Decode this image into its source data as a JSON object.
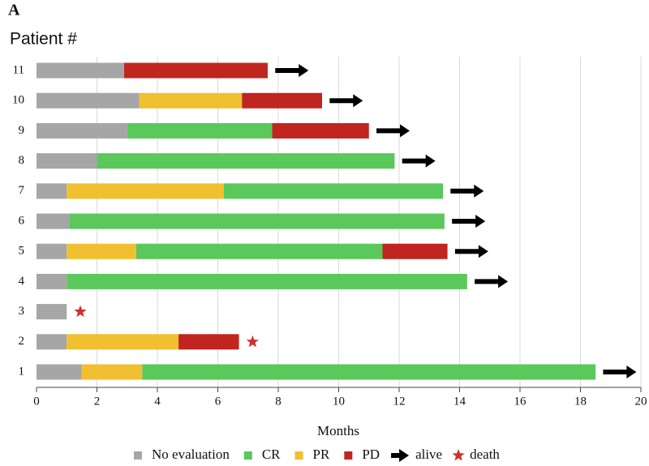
{
  "chart_data": {
    "type": "swimmer",
    "panel_label": "A",
    "y_label": "Patient #",
    "x_label": "Months",
    "categories": [
      "1",
      "2",
      "3",
      "4",
      "5",
      "6",
      "7",
      "8",
      "9",
      "10",
      "11"
    ],
    "series": [
      {
        "name": "No evaluation",
        "color": "#a6a6a6",
        "values": [
          1.5,
          1,
          1,
          1,
          1,
          1.1,
          1,
          2,
          3,
          3.4,
          2.9
        ]
      },
      {
        "name": "CR",
        "color": "#5ac85a",
        "values": [
          15.0,
          null,
          null,
          13.25,
          8.15,
          12.4,
          7.25,
          9.85,
          4.8,
          null,
          null
        ]
      },
      {
        "name": "PR",
        "color": "#f0c030",
        "values": [
          2.0,
          3.7,
          null,
          null,
          2.3,
          null,
          5.2,
          null,
          null,
          3.4,
          null
        ]
      },
      {
        "name": "PD",
        "color": "#c0251f",
        "values": [
          null,
          2.0,
          null,
          null,
          2.15,
          null,
          null,
          null,
          3.2,
          2.65,
          4.75
        ]
      }
    ],
    "stack_order": [
      "No evaluation",
      "PR",
      "CR",
      "PD"
    ],
    "outcome_markers": [
      {
        "name": "alive",
        "color": "#000000"
      },
      {
        "name": "death",
        "color": "#d03030"
      }
    ],
    "outcomes": [
      "alive",
      "death",
      "death",
      "alive",
      "alive",
      "alive",
      "alive",
      "alive",
      "alive",
      "alive",
      "alive"
    ],
    "xlim": [
      0,
      20
    ],
    "xticks": [
      0,
      2,
      4,
      6,
      8,
      10,
      12,
      14,
      16,
      18,
      20
    ],
    "grid": true
  }
}
